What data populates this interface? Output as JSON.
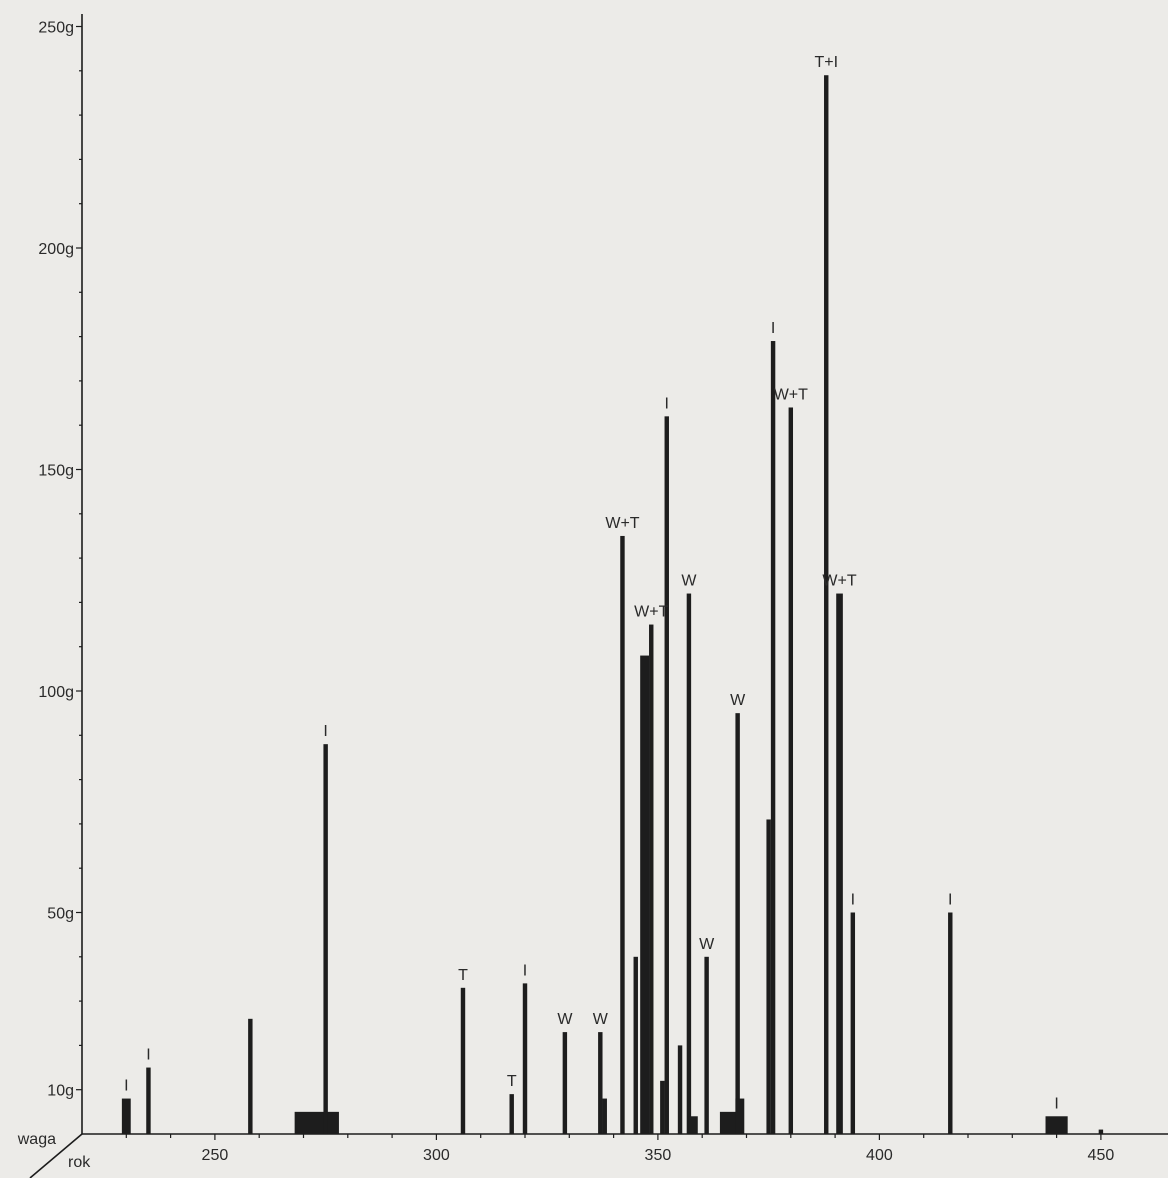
{
  "chart_data": {
    "type": "bar",
    "title": "",
    "xlabel": "rok",
    "ylabel": "waga",
    "xlim": [
      220,
      452
    ],
    "ylim": [
      0,
      250
    ],
    "x_ticks": [
      250,
      300,
      350,
      400,
      450
    ],
    "y_ticks": [
      {
        "value": 10,
        "label": "10g"
      },
      {
        "value": 50,
        "label": "50g"
      },
      {
        "value": 100,
        "label": "100g"
      },
      {
        "value": 150,
        "label": "150g"
      },
      {
        "value": 200,
        "label": "200g"
      },
      {
        "value": 250,
        "label": "250g"
      }
    ],
    "bars": [
      {
        "x": 230,
        "y": 8,
        "width": 2,
        "label": "I"
      },
      {
        "x": 235,
        "y": 15,
        "width": 1,
        "label": "I"
      },
      {
        "x": 258,
        "y": 26,
        "width": 1,
        "label": ""
      },
      {
        "x": 273,
        "y": 5,
        "width": 10,
        "label": ""
      },
      {
        "x": 275,
        "y": 88,
        "width": 1,
        "label": "I"
      },
      {
        "x": 306,
        "y": 33,
        "width": 1,
        "label": "T"
      },
      {
        "x": 317,
        "y": 9,
        "width": 1,
        "label": "T"
      },
      {
        "x": 320,
        "y": 34,
        "width": 1,
        "label": "I"
      },
      {
        "x": 329,
        "y": 23,
        "width": 1,
        "label": "W"
      },
      {
        "x": 337,
        "y": 23,
        "width": 1,
        "label": "W"
      },
      {
        "x": 338,
        "y": 8,
        "width": 1,
        "label": ""
      },
      {
        "x": 342,
        "y": 135,
        "width": 1,
        "label": "W+T"
      },
      {
        "x": 345,
        "y": 40,
        "width": 1,
        "label": ""
      },
      {
        "x": 347,
        "y": 108,
        "width": 2,
        "label": ""
      },
      {
        "x": 348.5,
        "y": 115,
        "width": 1,
        "label": "W+T"
      },
      {
        "x": 351,
        "y": 12,
        "width": 1,
        "label": ""
      },
      {
        "x": 352,
        "y": 162,
        "width": 1,
        "label": "I"
      },
      {
        "x": 355,
        "y": 20,
        "width": 1,
        "label": ""
      },
      {
        "x": 357,
        "y": 122,
        "width": 1,
        "label": "W"
      },
      {
        "x": 358,
        "y": 4,
        "width": 2,
        "label": ""
      },
      {
        "x": 361,
        "y": 40,
        "width": 1,
        "label": "W"
      },
      {
        "x": 366,
        "y": 5,
        "width": 4,
        "label": ""
      },
      {
        "x": 368,
        "y": 95,
        "width": 1,
        "label": "W"
      },
      {
        "x": 368.5,
        "y": 8,
        "width": 2,
        "label": ""
      },
      {
        "x": 375,
        "y": 71,
        "width": 1,
        "label": ""
      },
      {
        "x": 376,
        "y": 179,
        "width": 1,
        "label": "I"
      },
      {
        "x": 380,
        "y": 164,
        "width": 1,
        "label": "W+T"
      },
      {
        "x": 388,
        "y": 239,
        "width": 1,
        "label": "T+I"
      },
      {
        "x": 391,
        "y": 122,
        "width": 1.5,
        "label": "W+T"
      },
      {
        "x": 394,
        "y": 50,
        "width": 1,
        "label": "I"
      },
      {
        "x": 416,
        "y": 50,
        "width": 1,
        "label": "I"
      },
      {
        "x": 440,
        "y": 4,
        "width": 5,
        "label": "I"
      },
      {
        "x": 450,
        "y": 1,
        "width": 1,
        "label": ""
      }
    ]
  }
}
